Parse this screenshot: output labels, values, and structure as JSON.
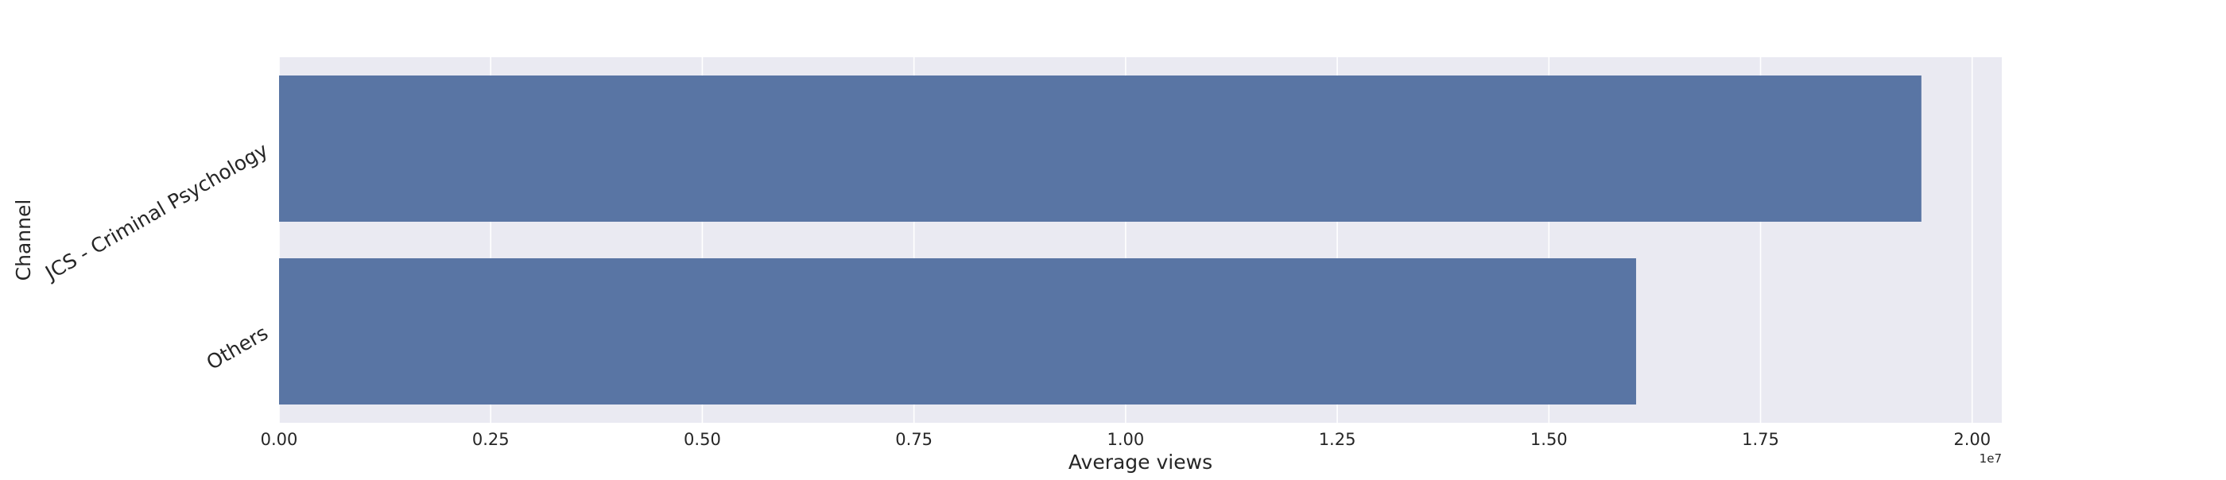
{
  "chart_data": {
    "type": "bar",
    "orientation": "horizontal",
    "categories": [
      "JCS - Criminal Psychology",
      "Others"
    ],
    "values": [
      19400000,
      16030000
    ],
    "xlabel": "Average views",
    "ylabel": "Channel",
    "xlim": [
      0,
      20350000
    ],
    "xticks": [
      0,
      2500000,
      5000000,
      7500000,
      10000000,
      12500000,
      15000000,
      17500000,
      20000000
    ],
    "xtick_labels": [
      "0.00",
      "0.25",
      "0.50",
      "0.75",
      "1.00",
      "1.25",
      "1.50",
      "1.75",
      "2.00"
    ],
    "offset_text": "1e7",
    "grid": true,
    "style": {
      "background": "#eaeaf2",
      "bar_color": "#5975a4",
      "grid_color": "#ffffff"
    }
  }
}
